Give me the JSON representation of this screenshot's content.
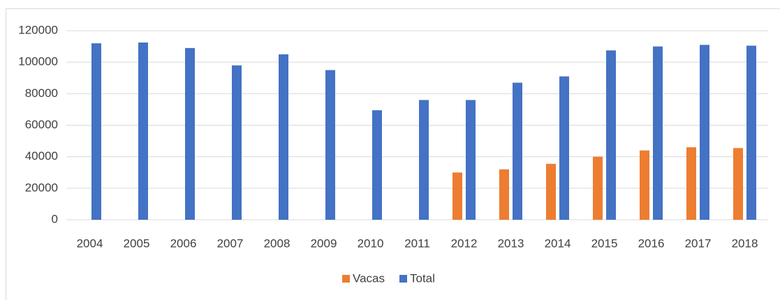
{
  "chart_data": {
    "type": "bar",
    "categories": [
      "2004",
      "2005",
      "2006",
      "2007",
      "2008",
      "2009",
      "2010",
      "2011",
      "2012",
      "2013",
      "2014",
      "2015",
      "2016",
      "2017",
      "2018"
    ],
    "series": [
      {
        "name": "Vacas",
        "color": "#ed7d31",
        "values": [
          null,
          null,
          null,
          null,
          null,
          null,
          null,
          null,
          30000,
          32000,
          35500,
          40000,
          44000,
          46000,
          45500
        ]
      },
      {
        "name": "Total",
        "color": "#4472c4",
        "values": [
          112000,
          112500,
          109000,
          98000,
          105000,
          95000,
          69500,
          76000,
          76000,
          87000,
          91000,
          107500,
          110000,
          111000,
          110500
        ]
      }
    ],
    "ylim": [
      0,
      120000
    ],
    "yticks": [
      0,
      20000,
      40000,
      60000,
      80000,
      100000,
      120000
    ],
    "grid": true,
    "legend": "bottom"
  }
}
